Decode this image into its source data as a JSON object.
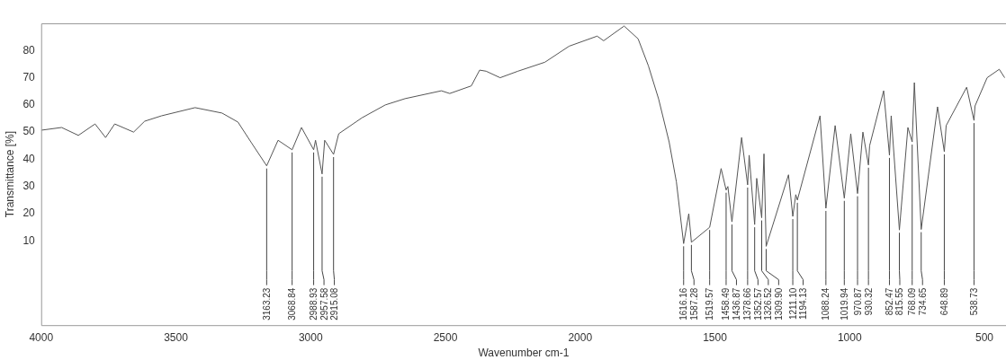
{
  "chart_data": {
    "type": "line",
    "xlabel": "Wavenumber cm-1",
    "ylabel": "Transmittance [%]",
    "marker": "none",
    "xlim": [
      4000,
      420
    ],
    "ylim": [
      -21,
      90
    ],
    "xticks": [
      4000,
      3500,
      3000,
      2500,
      2000,
      1500,
      1000,
      500
    ],
    "yticks": [
      10,
      20,
      30,
      40,
      50,
      60,
      70,
      80
    ],
    "x": [
      4000,
      3924,
      3862,
      3800,
      3761,
      3727,
      3657,
      3616,
      3553,
      3429,
      3329,
      3270,
      3218,
      3163.23,
      3121,
      3068.84,
      3034,
      2988.93,
      2982,
      2957.58,
      2948,
      2915.08,
      2896,
      2809,
      2723,
      2650,
      2515,
      2484,
      2404,
      2373,
      2349,
      2297,
      2231,
      2131,
      2041,
      1937,
      1913,
      1837,
      1785,
      1747,
      1709,
      1670,
      1643,
      1616.16,
      1597,
      1587.28,
      1519.57,
      1477,
      1458.49,
      1452,
      1436.87,
      1401,
      1378.66,
      1373,
      1352.57,
      1345,
      1326.52,
      1318,
      1309.9,
      1227,
      1211.1,
      1200,
      1194.13,
      1110,
      1088.24,
      1054,
      1019.94,
      996,
      970.87,
      951,
      930.32,
      926,
      874,
      852.47,
      846,
      815.55,
      784,
      768.09,
      760,
      734.65,
      674,
      648.89,
      642,
      566,
      538.73,
      535,
      490,
      445,
      425
    ],
    "series": [
      {
        "color": "#555555",
        "values": [
          50.7,
          51.7,
          48.8,
          53,
          48,
          53,
          50,
          54,
          56,
          59,
          57,
          53.7,
          45.8,
          37.6,
          47,
          43.5,
          51.7,
          43.5,
          47,
          34.6,
          47,
          41.8,
          49.4,
          55.3,
          60,
          62.3,
          65.2,
          64.2,
          67,
          72.8,
          72.4,
          70,
          72.4,
          75.7,
          81.6,
          85.3,
          83.6,
          89,
          84.3,
          74.4,
          62.2,
          46.4,
          31.7,
          9,
          20,
          9.5,
          15,
          36.6,
          28.7,
          30,
          17,
          48,
          30.6,
          41.5,
          16,
          33,
          18.5,
          42,
          8,
          34.3,
          19,
          27,
          25,
          56,
          22,
          52.4,
          25.7,
          49.4,
          27.4,
          50,
          37.9,
          45,
          65.2,
          41.5,
          56,
          14,
          51.7,
          46.4,
          68.2,
          14.2,
          59.3,
          42.8,
          52.4,
          66.5,
          54.3,
          59.6,
          70,
          73.1,
          70
        ]
      }
    ],
    "annotations": [
      {
        "text": "3163.23",
        "x": 3163.23,
        "y": 37.6
      },
      {
        "text": "3068.84",
        "x": 3068.84,
        "y": 43.5
      },
      {
        "text": "2988.93",
        "x": 2988.93,
        "y": 43.5
      },
      {
        "text": "2957.58",
        "x": 2957.58,
        "y": 34.6
      },
      {
        "text": "2915.08",
        "x": 2915.08,
        "y": 41.8
      },
      {
        "text": "1616.16",
        "x": 1616.16,
        "y": 9
      },
      {
        "text": "1587.28",
        "x": 1587.28,
        "y": 9.5
      },
      {
        "text": "1519.57",
        "x": 1519.57,
        "y": 15
      },
      {
        "text": "1458.49",
        "x": 1458.49,
        "y": 28.7
      },
      {
        "text": "1436.87",
        "x": 1436.87,
        "y": 17
      },
      {
        "text": "1378.66",
        "x": 1378.66,
        "y": 30.6
      },
      {
        "text": "1352.57",
        "x": 1352.57,
        "y": 16
      },
      {
        "text": "1326.52",
        "x": 1326.52,
        "y": 18.5
      },
      {
        "text": "1309.90",
        "x": 1309.9,
        "y": 8
      },
      {
        "text": "1211.10",
        "x": 1211.1,
        "y": 19
      },
      {
        "text": "1194.13",
        "x": 1194.13,
        "y": 25
      },
      {
        "text": "1088.24",
        "x": 1088.24,
        "y": 22
      },
      {
        "text": "1019.94",
        "x": 1019.94,
        "y": 25.7
      },
      {
        "text": "970.87",
        "x": 970.87,
        "y": 27.4
      },
      {
        "text": "930.32",
        "x": 930.32,
        "y": 37.9
      },
      {
        "text": "852.47",
        "x": 852.47,
        "y": 41.5
      },
      {
        "text": "815.55",
        "x": 815.55,
        "y": 14
      },
      {
        "text": "768.09",
        "x": 768.09,
        "y": 46.4
      },
      {
        "text": "734.65",
        "x": 734.65,
        "y": 14.2
      },
      {
        "text": "648.89",
        "x": 648.89,
        "y": 42.8
      },
      {
        "text": "538.73",
        "x": 538.73,
        "y": 54.3
      }
    ]
  }
}
